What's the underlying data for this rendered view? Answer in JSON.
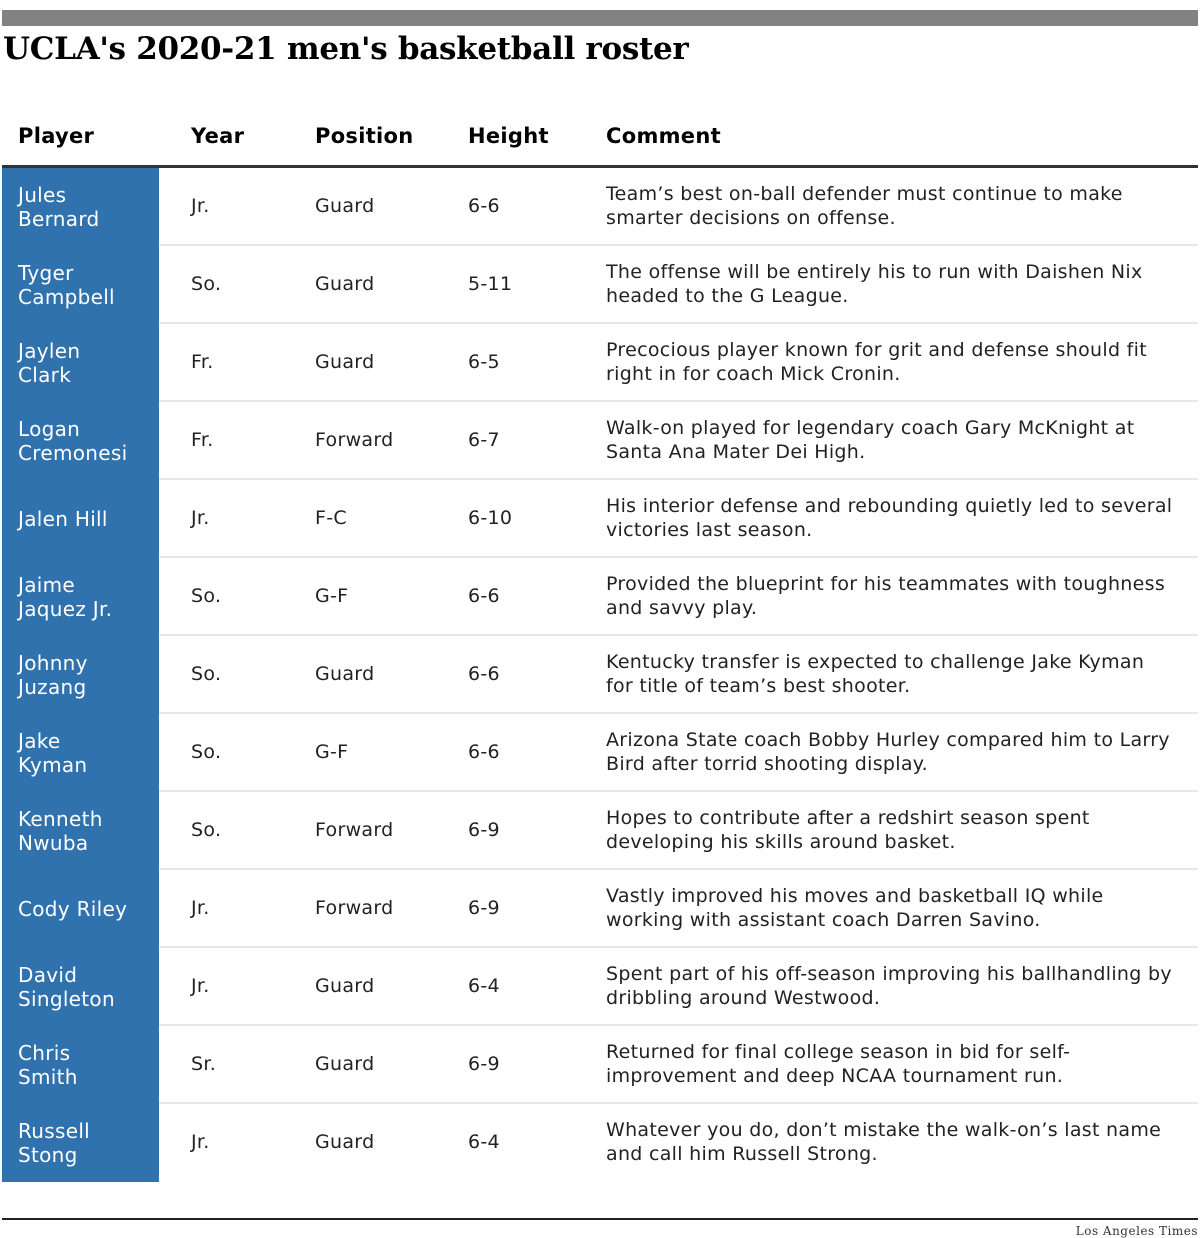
{
  "title": "UCLA's 2020-21 men's basketball roster",
  "columns": {
    "player": "Player",
    "year": "Year",
    "position": "Position",
    "height": "Height",
    "comment": "Comment"
  },
  "rows": [
    {
      "name": "Jules Bernard",
      "year": "Jr.",
      "position": "Guard",
      "height": "6-6",
      "comment": "Team’s best on-ball defender must continue to make smarter decisions on offense."
    },
    {
      "name": "Tyger Campbell",
      "year": "So.",
      "position": "Guard",
      "height": "5-11",
      "comment": "The offense will be entirely his to run with Daishen Nix headed to the G League."
    },
    {
      "name": "Jaylen Clark",
      "year": "Fr.",
      "position": "Guard",
      "height": "6-5",
      "comment": "Precocious player known for grit and defense should fit right in for coach Mick Cronin."
    },
    {
      "name": "Logan Cremonesi",
      "year": "Fr.",
      "position": "Forward",
      "height": "6-7",
      "comment": "Walk-on played for legendary coach Gary McKnight at Santa Ana Mater Dei High."
    },
    {
      "name": "Jalen Hill",
      "year": "Jr.",
      "position": "F-C",
      "height": "6-10",
      "comment": "His interior defense and rebounding quietly led to several victories last season."
    },
    {
      "name": "Jaime Jaquez Jr.",
      "year": "So.",
      "position": "G-F",
      "height": "6-6",
      "comment": "Provided the blueprint for his teammates with toughness and savvy play."
    },
    {
      "name": "Johnny Juzang",
      "year": "So.",
      "position": "Guard",
      "height": "6-6",
      "comment": "Kentucky transfer is expected to challenge Jake Kyman for title of team’s best shooter."
    },
    {
      "name": "Jake Kyman",
      "year": "So.",
      "position": "G-F",
      "height": "6-6",
      "comment": "Arizona State coach Bobby Hurley compared him to Larry Bird after torrid shooting display."
    },
    {
      "name": "Kenneth Nwuba",
      "year": "So.",
      "position": "Forward",
      "height": "6-9",
      "comment": "Hopes to contribute after a redshirt season spent developing his skills around basket."
    },
    {
      "name": "Cody Riley",
      "year": "Jr.",
      "position": "Forward",
      "height": "6-9",
      "comment": "Vastly improved his moves and basketball IQ while working with assistant coach Darren Savino."
    },
    {
      "name": "David Singleton",
      "year": "Jr.",
      "position": "Guard",
      "height": "6-4",
      "comment": "Spent part of his off-season improving his ballhandling by dribbling around Westwood."
    },
    {
      "name": "Chris Smith",
      "year": "Sr.",
      "position": "Guard",
      "height": "6-9",
      "comment": "Returned for final college season in bid for self-improvement and deep NCAA tournament run."
    },
    {
      "name": "Russell Stong",
      "year": "Jr.",
      "position": "Guard",
      "height": "6-4",
      "comment": "Whatever you do, don’t mistake the walk-on’s last name and call him Russell Strong."
    }
  ],
  "credit": "Los Angeles Times",
  "colors": {
    "top_bar": "#828282",
    "name_cell": "#2f72ae",
    "name_text": "#ffffff",
    "row_rule": "#e8e8e8"
  }
}
